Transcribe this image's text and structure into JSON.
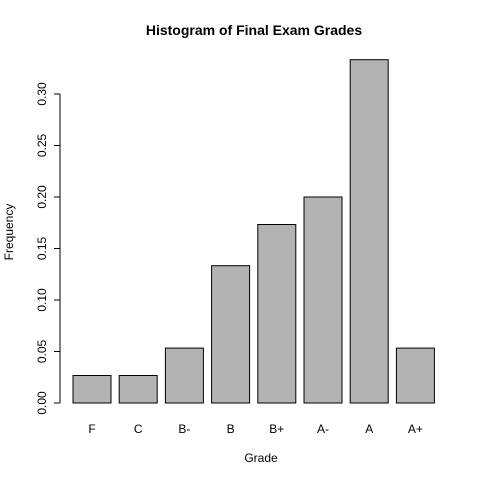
{
  "chart_data": {
    "type": "bar",
    "title": "Histogram of Final Exam Grades",
    "x_label": "Grade",
    "y_label": "Frequency",
    "categories": [
      "F",
      "C",
      "B-",
      "B",
      "B+",
      "A-",
      "A",
      "A+"
    ],
    "values": [
      0.0267,
      0.0267,
      0.0533,
      0.1333,
      0.1733,
      0.2,
      0.3333,
      0.0533
    ],
    "color": "#b3b3b3",
    "ylim": [
      0,
      0.35
    ],
    "yticks": [
      {
        "value": 0,
        "label": "0.00"
      },
      0.05,
      {
        "value": 0.1,
        "label": "0.10"
      },
      0.15,
      {
        "value": 0.2,
        "label": "0.20"
      },
      0.25,
      {
        "value": 0.3,
        "label": "0.30"
      }
    ]
  }
}
